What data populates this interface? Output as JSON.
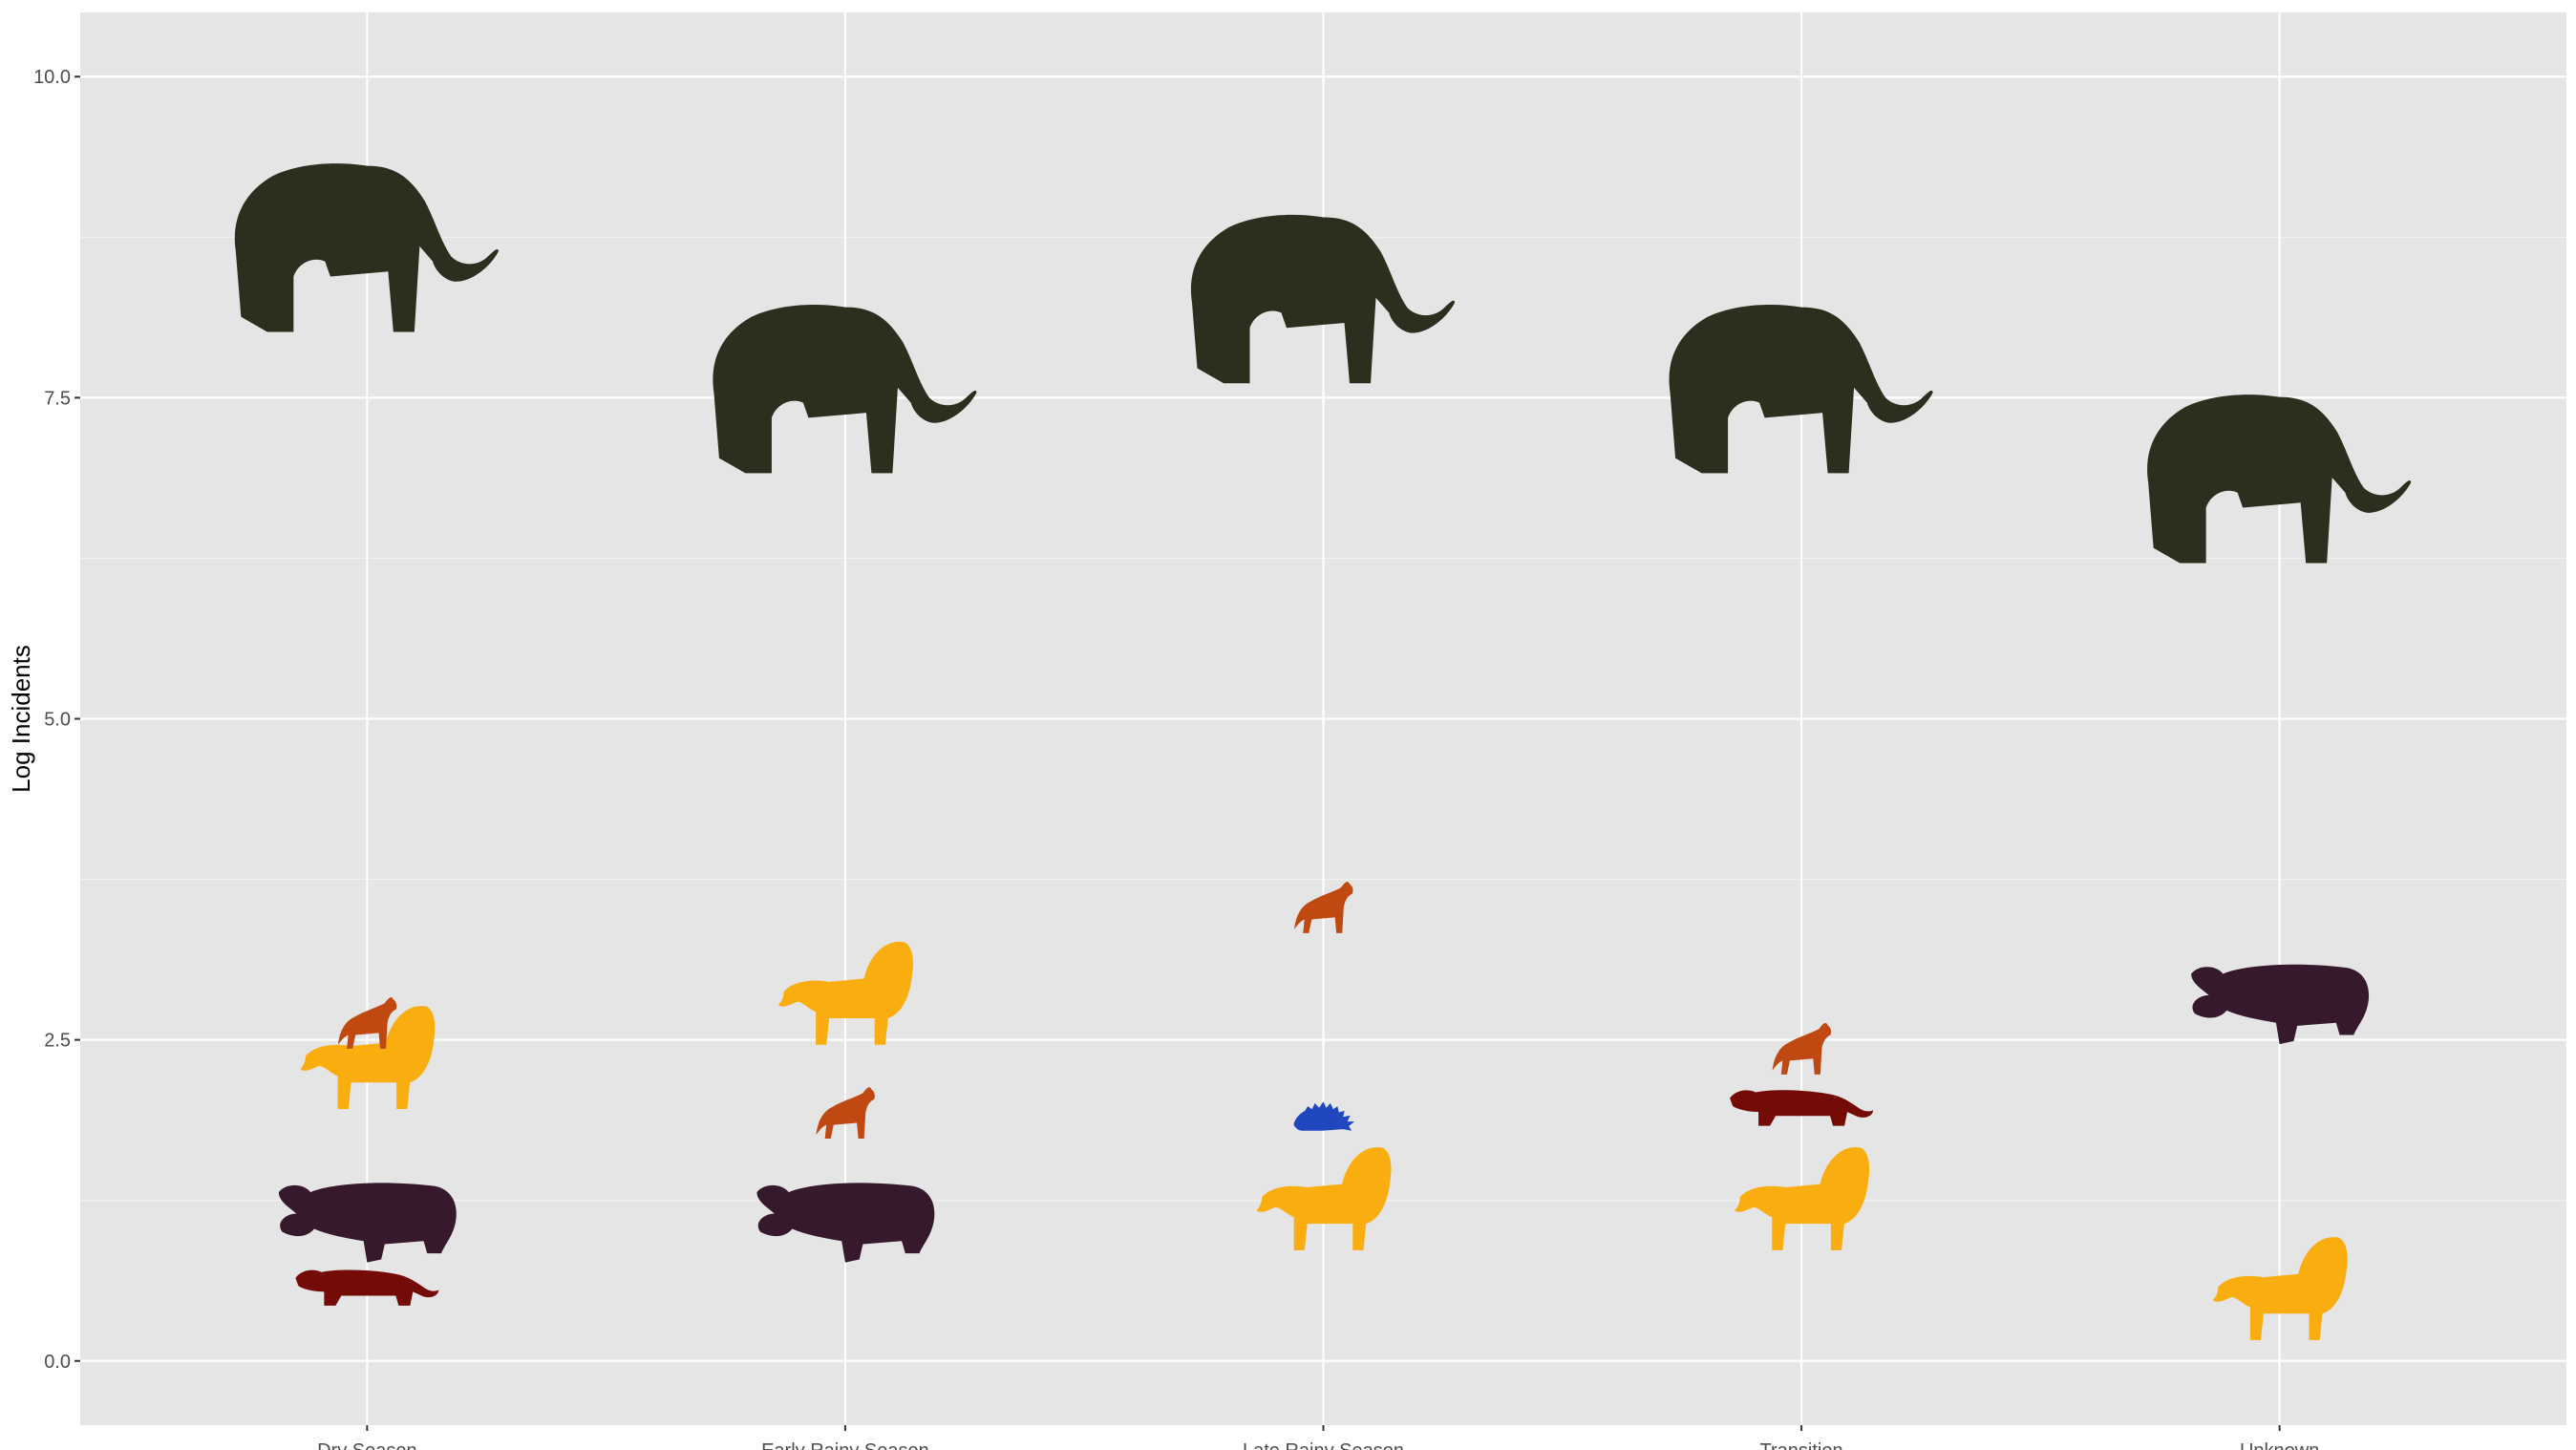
{
  "chart_data": {
    "type": "scatter",
    "title": "",
    "xlabel": "",
    "ylabel": "Log Incidents",
    "categories": [
      "Dry Season",
      "Early Rainy Season",
      "Late Rainy Season",
      "Transition",
      "Unknown"
    ],
    "ylim": [
      -0.5,
      10.5
    ],
    "yticks": [
      "0.0",
      "2.5",
      "5.0",
      "7.5",
      "10.0"
    ],
    "grid": true,
    "legend": "none",
    "series": [
      {
        "icon": "elephant-icon",
        "color": "#2b2f1e",
        "values": [
          8.6,
          7.5,
          8.2,
          7.5,
          6.8
        ]
      },
      {
        "icon": "lion-icon",
        "color": "#f9ad0f",
        "values": [
          2.4,
          2.9,
          1.3,
          1.3,
          0.6
        ]
      },
      {
        "icon": "hippo-icon",
        "color": "#36192c",
        "values": [
          1.1,
          1.1,
          null,
          null,
          2.8
        ]
      },
      {
        "icon": "hyena-icon",
        "color": "#c04911",
        "values": [
          2.6,
          1.9,
          3.5,
          2.4,
          null
        ]
      },
      {
        "icon": "leopard-icon",
        "color": "#750b07",
        "values": [
          0.6,
          null,
          null,
          2.0,
          null
        ]
      },
      {
        "icon": "porcupine-icon",
        "color": "#2047be",
        "values": [
          null,
          null,
          1.9,
          null,
          null
        ]
      }
    ]
  }
}
